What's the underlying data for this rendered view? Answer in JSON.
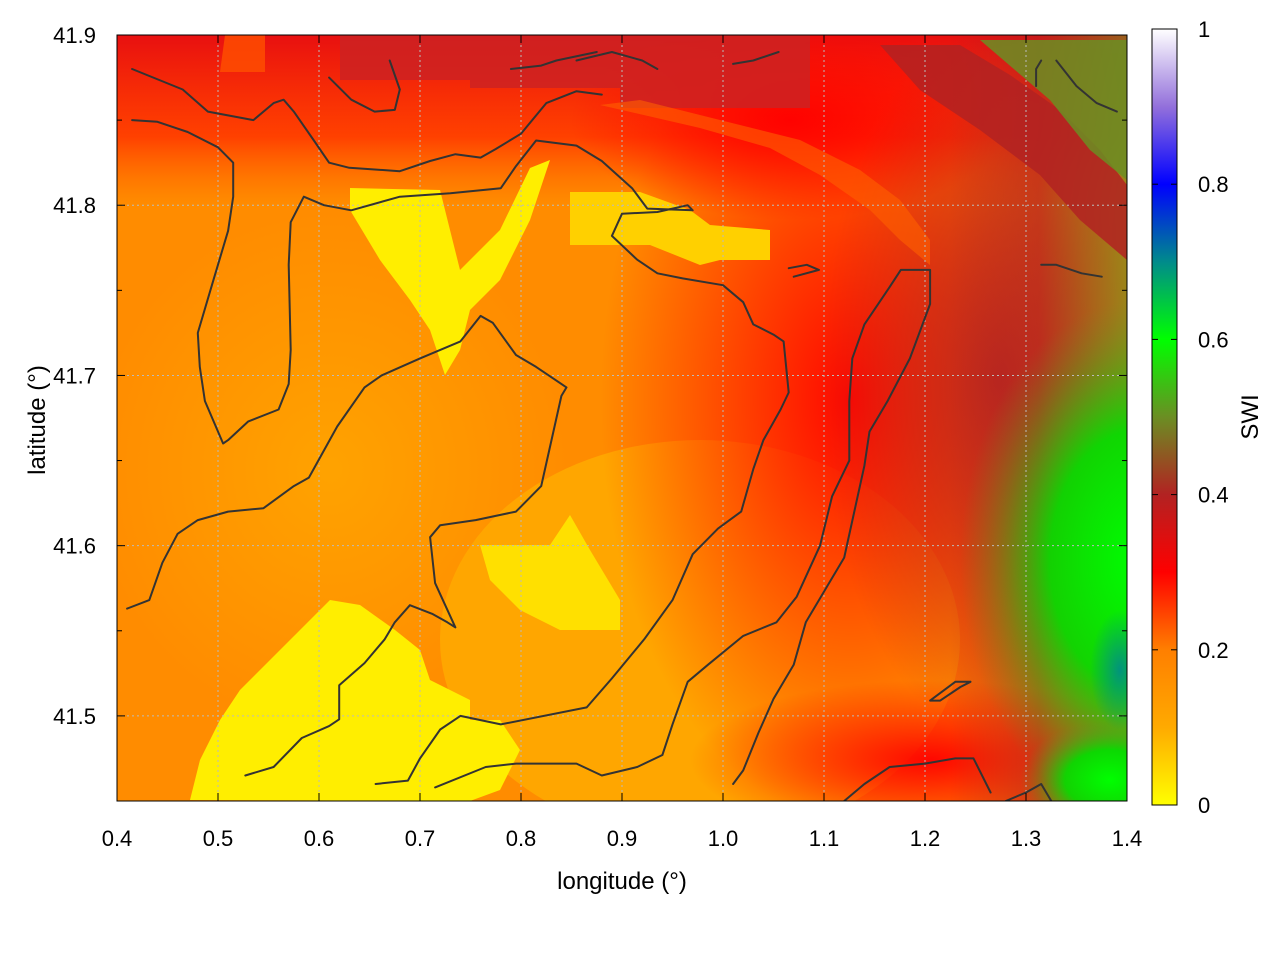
{
  "chart_data": {
    "type": "heatmap",
    "xlabel": "longitude (°)",
    "ylabel": "latitude (°)",
    "colorbar_label": "SWI",
    "xlim": [
      0.4,
      1.4
    ],
    "ylim": [
      41.45,
      41.9
    ],
    "x_ticks": [
      0.4,
      0.5,
      0.6,
      0.7,
      0.8,
      0.9,
      1.0,
      1.1,
      1.2,
      1.3,
      1.4
    ],
    "x_tick_labels": [
      "0.4",
      "0.5",
      "0.6",
      "0.7",
      "0.8",
      "0.9",
      "1.0",
      "1.1",
      "1.2",
      "1.3",
      "1.4"
    ],
    "y_ticks": [
      41.5,
      41.6,
      41.7,
      41.8,
      41.9
    ],
    "y_tick_labels": [
      "41.5",
      "41.6",
      "41.7",
      "41.8",
      "41.9"
    ],
    "colorbar_range": [
      0,
      1
    ],
    "colorbar_ticks": [
      0,
      0.2,
      0.4,
      0.6,
      0.8,
      1
    ],
    "colorbar_tick_labels": [
      "0",
      "0.2",
      "0.4",
      "0.6",
      "0.8",
      "1"
    ],
    "colormap": [
      {
        "value": 0.0,
        "color": "#ffff00"
      },
      {
        "value": 0.1,
        "color": "#ffaa00"
      },
      {
        "value": 0.2,
        "color": "#ff7f00"
      },
      {
        "value": 0.3,
        "color": "#ff0000"
      },
      {
        "value": 0.4,
        "color": "#b22222"
      },
      {
        "value": 0.5,
        "color": "#6b8e23"
      },
      {
        "value": 0.6,
        "color": "#00ff00"
      },
      {
        "value": 0.7,
        "color": "#008b8b"
      },
      {
        "value": 0.8,
        "color": "#0000ff"
      },
      {
        "value": 0.9,
        "color": "#9370db"
      },
      {
        "value": 1.0,
        "color": "#ffffff"
      }
    ],
    "grid": true,
    "contours": [
      [
        [
          0.415,
          41.88
        ],
        [
          0.465,
          41.868
        ],
        [
          0.49,
          41.855
        ],
        [
          0.535,
          41.85
        ],
        [
          0.555,
          41.86
        ],
        [
          0.565,
          41.862
        ],
        [
          0.575,
          41.855
        ],
        [
          0.595,
          41.838
        ],
        [
          0.61,
          41.825
        ],
        [
          0.63,
          41.822
        ],
        [
          0.68,
          41.82
        ],
        [
          0.71,
          41.826
        ],
        [
          0.735,
          41.83
        ],
        [
          0.76,
          41.828
        ],
        [
          0.775,
          41.833
        ],
        [
          0.8,
          41.842
        ],
        [
          0.825,
          41.86
        ],
        [
          0.855,
          41.867
        ],
        [
          0.88,
          41.865
        ]
      ],
      [
        [
          0.415,
          41.85
        ],
        [
          0.44,
          41.849
        ],
        [
          0.47,
          41.843
        ],
        [
          0.5,
          41.834
        ],
        [
          0.515,
          41.825
        ],
        [
          0.515,
          41.805
        ],
        [
          0.51,
          41.785
        ],
        [
          0.495,
          41.755
        ],
        [
          0.48,
          41.725
        ],
        [
          0.482,
          41.705
        ],
        [
          0.487,
          41.685
        ],
        [
          0.505,
          41.66
        ],
        [
          0.51,
          41.662
        ],
        [
          0.53,
          41.673
        ],
        [
          0.56,
          41.68
        ],
        [
          0.57,
          41.695
        ],
        [
          0.572,
          41.715
        ],
        [
          0.57,
          41.765
        ],
        [
          0.572,
          41.79
        ],
        [
          0.585,
          41.805
        ],
        [
          0.605,
          41.8
        ],
        [
          0.632,
          41.797
        ],
        [
          0.68,
          41.805
        ],
        [
          0.73,
          41.807
        ],
        [
          0.78,
          41.81
        ],
        [
          0.795,
          41.823
        ],
        [
          0.815,
          41.838
        ],
        [
          0.855,
          41.835
        ],
        [
          0.88,
          41.826
        ],
        [
          0.91,
          41.81
        ],
        [
          0.925,
          41.798
        ],
        [
          0.97,
          41.797
        ],
        [
          0.965,
          41.8
        ],
        [
          0.935,
          41.796
        ],
        [
          0.9,
          41.795
        ],
        [
          0.89,
          41.782
        ],
        [
          0.915,
          41.768
        ],
        [
          0.935,
          41.76
        ],
        [
          0.96,
          41.757
        ],
        [
          1.0,
          41.753
        ],
        [
          1.02,
          41.743
        ],
        [
          1.03,
          41.73
        ],
        [
          1.05,
          41.724
        ],
        [
          1.06,
          41.72
        ],
        [
          1.065,
          41.69
        ],
        [
          1.057,
          41.68
        ],
        [
          1.04,
          41.662
        ],
        [
          1.03,
          41.645
        ],
        [
          1.018,
          41.62
        ],
        [
          0.995,
          41.61
        ],
        [
          0.97,
          41.595
        ],
        [
          0.95,
          41.568
        ],
        [
          0.922,
          41.545
        ],
        [
          0.89,
          41.522
        ],
        [
          0.865,
          41.505
        ],
        [
          0.78,
          41.495
        ],
        [
          0.74,
          41.5
        ],
        [
          0.72,
          41.492
        ],
        [
          0.7,
          41.475
        ],
        [
          0.688,
          41.462
        ],
        [
          0.656,
          41.46
        ]
      ],
      [
        [
          0.527,
          41.465
        ],
        [
          0.555,
          41.47
        ],
        [
          0.583,
          41.487
        ],
        [
          0.61,
          41.494
        ],
        [
          0.62,
          41.498
        ],
        [
          0.62,
          41.518
        ],
        [
          0.645,
          41.531
        ],
        [
          0.665,
          41.545
        ],
        [
          0.675,
          41.555
        ],
        [
          0.69,
          41.565
        ],
        [
          0.712,
          41.56
        ],
        [
          0.727,
          41.555
        ],
        [
          0.735,
          41.552
        ],
        [
          0.715,
          41.578
        ],
        [
          0.71,
          41.605
        ],
        [
          0.72,
          41.612
        ],
        [
          0.755,
          41.615
        ],
        [
          0.795,
          41.62
        ],
        [
          0.82,
          41.635
        ],
        [
          0.84,
          41.688
        ],
        [
          0.845,
          41.693
        ],
        [
          0.815,
          41.705
        ],
        [
          0.795,
          41.712
        ],
        [
          0.772,
          41.731
        ],
        [
          0.76,
          41.735
        ],
        [
          0.74,
          41.72
        ],
        [
          0.7,
          41.71
        ],
        [
          0.662,
          41.7
        ],
        [
          0.645,
          41.693
        ],
        [
          0.618,
          41.67
        ],
        [
          0.59,
          41.64
        ],
        [
          0.575,
          41.635
        ],
        [
          0.545,
          41.622
        ],
        [
          0.51,
          41.62
        ],
        [
          0.48,
          41.615
        ],
        [
          0.46,
          41.607
        ],
        [
          0.445,
          41.59
        ],
        [
          0.432,
          41.568
        ],
        [
          0.41,
          41.563
        ]
      ],
      [
        [
          0.715,
          41.458
        ],
        [
          0.765,
          41.47
        ],
        [
          0.795,
          41.472
        ],
        [
          0.855,
          41.472
        ],
        [
          0.88,
          41.465
        ],
        [
          0.915,
          41.47
        ],
        [
          0.94,
          41.477
        ],
        [
          0.95,
          41.495
        ],
        [
          0.965,
          41.52
        ],
        [
          0.985,
          41.53
        ],
        [
          1.02,
          41.547
        ],
        [
          1.053,
          41.555
        ],
        [
          1.073,
          41.57
        ],
        [
          1.096,
          41.6
        ],
        [
          1.108,
          41.629
        ],
        [
          1.125,
          41.65
        ],
        [
          1.125,
          41.685
        ],
        [
          1.128,
          41.71
        ],
        [
          1.14,
          41.73
        ],
        [
          1.165,
          41.752
        ],
        [
          1.176,
          41.762
        ],
        [
          1.205,
          41.762
        ],
        [
          1.205,
          41.742
        ],
        [
          1.185,
          41.71
        ],
        [
          1.163,
          41.685
        ],
        [
          1.145,
          41.667
        ],
        [
          1.14,
          41.647
        ],
        [
          1.13,
          41.62
        ],
        [
          1.12,
          41.593
        ],
        [
          1.1,
          41.573
        ],
        [
          1.082,
          41.555
        ],
        [
          1.07,
          41.53
        ],
        [
          1.05,
          41.51
        ],
        [
          1.035,
          41.49
        ],
        [
          1.02,
          41.468
        ],
        [
          1.01,
          41.46
        ]
      ],
      [
        [
          0.79,
          41.88
        ],
        [
          0.82,
          41.882
        ],
        [
          0.835,
          41.885
        ],
        [
          0.875,
          41.89
        ]
      ],
      [
        [
          0.67,
          41.885
        ],
        [
          0.68,
          41.868
        ],
        [
          0.675,
          41.856
        ],
        [
          0.655,
          41.855
        ],
        [
          0.632,
          41.862
        ],
        [
          0.61,
          41.875
        ]
      ],
      [
        [
          0.855,
          41.885
        ],
        [
          0.89,
          41.89
        ],
        [
          0.92,
          41.885
        ],
        [
          0.935,
          41.88
        ]
      ],
      [
        [
          1.01,
          41.883
        ],
        [
          1.03,
          41.885
        ],
        [
          1.055,
          41.89
        ]
      ],
      [
        [
          1.065,
          41.763
        ],
        [
          1.083,
          41.765
        ],
        [
          1.095,
          41.762
        ],
        [
          1.07,
          41.758
        ]
      ],
      [
        [
          1.12,
          41.45
        ],
        [
          1.14,
          41.46
        ],
        [
          1.165,
          41.47
        ],
        [
          1.2,
          41.472
        ],
        [
          1.23,
          41.475
        ],
        [
          1.248,
          41.475
        ],
        [
          1.265,
          41.455
        ]
      ],
      [
        [
          1.28,
          41.45
        ],
        [
          1.3,
          41.455
        ],
        [
          1.315,
          41.46
        ],
        [
          1.325,
          41.45
        ]
      ],
      [
        [
          1.245,
          41.52
        ],
        [
          1.235,
          41.517
        ],
        [
          1.215,
          41.509
        ],
        [
          1.205,
          41.509
        ],
        [
          1.23,
          41.52
        ],
        [
          1.245,
          41.52
        ]
      ],
      [
        [
          1.33,
          41.885
        ],
        [
          1.35,
          41.87
        ],
        [
          1.37,
          41.86
        ],
        [
          1.39,
          41.855
        ]
      ],
      [
        [
          1.31,
          41.87
        ],
        [
          1.31,
          41.88
        ],
        [
          1.315,
          41.885
        ]
      ],
      [
        [
          1.315,
          41.765
        ],
        [
          1.33,
          41.765
        ],
        [
          1.355,
          41.76
        ],
        [
          1.375,
          41.758
        ]
      ]
    ]
  }
}
